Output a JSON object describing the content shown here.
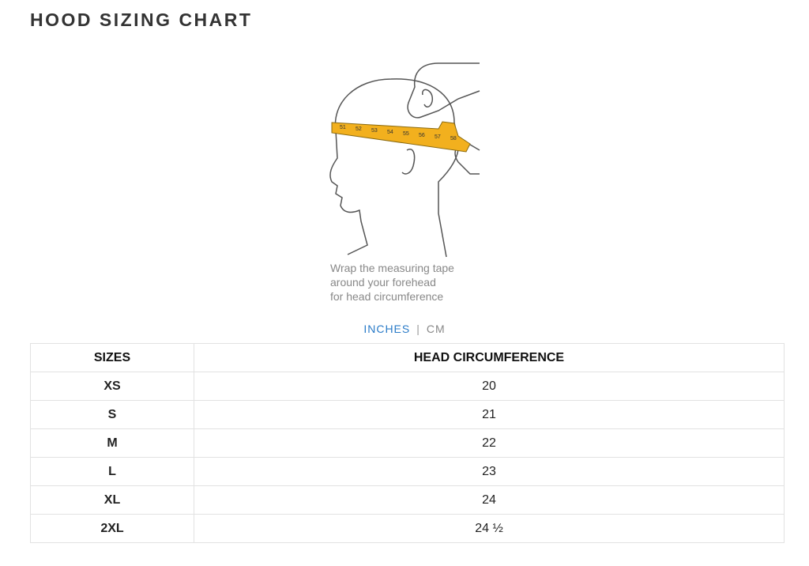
{
  "header": {
    "title": "HOOD SIZING CHART"
  },
  "illustration": {
    "tape_marks": [
      "51",
      "52",
      "53",
      "54",
      "55",
      "56",
      "57",
      "58"
    ],
    "caption": [
      "Wrap the measuring tape",
      "around your forehead",
      "for head circumference"
    ]
  },
  "tabs": [
    "INCHES",
    "|",
    "CM"
  ],
  "table": {
    "columns": [
      "SIZES",
      "HEAD CIRCUMFERENCE"
    ],
    "rows": [
      [
        "XS",
        "20"
      ],
      [
        "S",
        "21"
      ],
      [
        "M",
        "22"
      ],
      [
        "L",
        "23"
      ],
      [
        "XL",
        "24"
      ],
      [
        "2XL",
        "24 ½"
      ]
    ]
  }
}
